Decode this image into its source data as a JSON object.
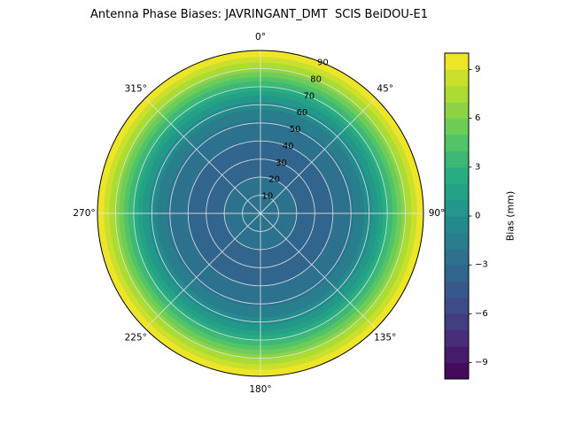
{
  "chart_data": {
    "type": "contour_polar",
    "title": "Antenna Phase Biases: JAVRINGANT_DMT  SCIS BeiDOU-E1",
    "theta_labels": [
      "0°",
      "45°",
      "90°",
      "135°",
      "180°",
      "225°",
      "270°",
      "315°"
    ],
    "radial_ticks": [
      10,
      20,
      30,
      40,
      50,
      60,
      70,
      80,
      90
    ],
    "radial_max": 90,
    "radial_label_angle_deg": 22.5,
    "colormap": "viridis",
    "vmin": -10,
    "vmax": 10,
    "level_step": 1,
    "azimuthal_symmetry": true,
    "profile": {
      "zenith_deg": [
        0,
        10,
        20,
        30,
        40,
        50,
        55,
        60,
        65,
        70,
        75,
        80,
        85,
        90
      ],
      "bias_mm": [
        -2.2,
        -2.6,
        -3.0,
        -3.2,
        -3.0,
        -2.2,
        -1.5,
        -0.5,
        1.0,
        2.8,
        4.8,
        6.8,
        8.5,
        10.2
      ]
    },
    "colorbar": {
      "ticks": [
        9,
        6,
        3,
        0,
        -3,
        -6,
        -9
      ],
      "tick_labels": [
        "9",
        "6",
        "3",
        "0",
        "−3",
        "−6",
        "−9"
      ],
      "label": "Bias (mm)"
    },
    "viridis_stops": [
      "#440154",
      "#472d7b",
      "#3b528b",
      "#2c728e",
      "#21918c",
      "#27ad81",
      "#5ec962",
      "#aadc32",
      "#fde725"
    ],
    "colors": {
      "background": "#ffffff",
      "grid_line": "#e8e8e8",
      "axis_line": "#000000",
      "text": "#000000"
    }
  }
}
